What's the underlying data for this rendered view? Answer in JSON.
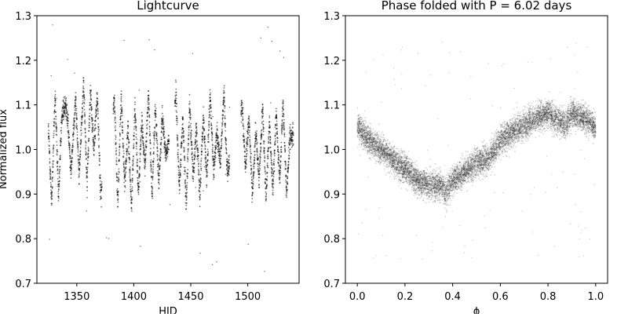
{
  "chart_data": [
    {
      "type": "scatter",
      "title": "Lightcurve",
      "xlabel": "HJD",
      "ylabel": "Normalized flux",
      "xlim": [
        1315,
        1545
      ],
      "ylim": [
        0.7,
        1.3
      ],
      "xticks": [
        1350,
        1400,
        1450,
        1500
      ],
      "yticks": [
        0.7,
        0.8,
        0.9,
        1.0,
        1.1,
        1.2,
        1.3
      ],
      "ytick_labels": [
        "0.7",
        "0.8",
        "0.9",
        "1.0",
        "1.1",
        "1.2",
        "1.3"
      ],
      "grid": false,
      "marker_color": "#000000",
      "observing_segments_hjd": [
        [
          1325,
          1372
        ],
        [
          1382,
          1431
        ],
        [
          1436,
          1484
        ],
        [
          1494,
          1540
        ]
      ],
      "series": [
        {
          "x": [
            1325,
            1328,
            1331,
            1334,
            1337,
            1341,
            1345,
            1349,
            1352,
            1356,
            1359,
            1362,
            1365,
            1368,
            1371,
            1383,
            1386,
            1389,
            1392,
            1395,
            1398,
            1401,
            1404,
            1407,
            1410,
            1413,
            1416,
            1419,
            1422,
            1425,
            1428,
            1437,
            1440,
            1443,
            1446,
            1449,
            1452,
            1455,
            1458,
            1461,
            1464,
            1467,
            1470,
            1473,
            1476,
            1479,
            1482,
            1495,
            1498,
            1501,
            1504,
            1507,
            1510,
            1513,
            1516,
            1519,
            1522,
            1525,
            1528,
            1531,
            1534,
            1537
          ],
          "y": [
            1.05,
            0.88,
            1.12,
            0.9,
            1.08,
            1.1,
            0.95,
            1.12,
            0.94,
            1.15,
            0.92,
            1.13,
            1.0,
            1.12,
            0.9,
            1.11,
            0.88,
            1.12,
            0.92,
            1.05,
            0.87,
            1.1,
            0.9,
            1.06,
            0.96,
            1.13,
            0.89,
            1.1,
            0.92,
            1.08,
            0.98,
            1.12,
            0.91,
            1.07,
            0.88,
            1.1,
            0.94,
            1.05,
            0.9,
            1.08,
            0.93,
            1.12,
            0.95,
            1.04,
            0.97,
            1.13,
            0.95,
            1.1,
            0.96,
            1.07,
            0.9,
            1.04,
            0.93,
            1.1,
            0.89,
            1.06,
            0.91,
            1.08,
            0.93,
            1.1,
            0.9,
            1.03
          ]
        }
      ]
    },
    {
      "type": "scatter",
      "title": "Phase folded with P = 6.02 days",
      "xlabel": "ϕ",
      "ylabel": "",
      "xlim": [
        -0.05,
        1.05
      ],
      "ylim": [
        0.7,
        1.3
      ],
      "xticks": [
        0.0,
        0.2,
        0.4,
        0.6,
        0.8,
        1.0
      ],
      "xtick_labels": [
        "0.0",
        "0.2",
        "0.4",
        "0.6",
        "0.8",
        "1.0"
      ],
      "yticks": [
        0.7,
        0.8,
        0.9,
        1.0,
        1.1,
        1.2,
        1.3
      ],
      "ytick_labels": [
        "0.7",
        "0.8",
        "0.9",
        "1.0",
        "1.1",
        "1.2",
        "1.3"
      ],
      "grid": false,
      "marker_color": "#000000",
      "series": [
        {
          "x": [
            0.0,
            0.02,
            0.05,
            0.1,
            0.15,
            0.18,
            0.2,
            0.25,
            0.3,
            0.35,
            0.37,
            0.4,
            0.45,
            0.5,
            0.55,
            0.6,
            0.65,
            0.7,
            0.72,
            0.75,
            0.8,
            0.85,
            0.88,
            0.9,
            0.95,
            1.0
          ],
          "y": [
            1.05,
            1.04,
            1.02,
            1.0,
            0.98,
            0.96,
            0.96,
            0.93,
            0.92,
            0.92,
            0.9,
            0.93,
            0.95,
            0.97,
            0.98,
            1.02,
            1.04,
            1.05,
            1.06,
            1.07,
            1.08,
            1.06,
            1.06,
            1.08,
            1.07,
            1.05
          ]
        }
      ]
    }
  ]
}
